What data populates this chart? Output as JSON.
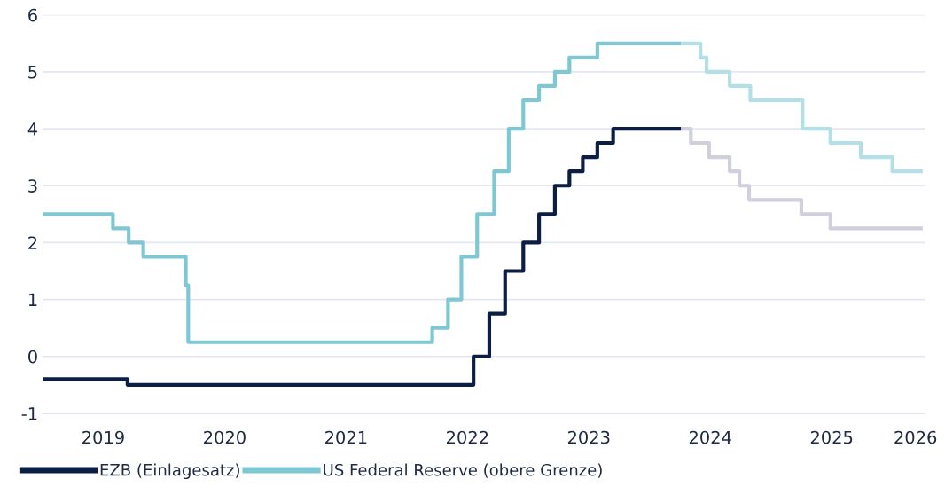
{
  "chart_data": {
    "type": "step",
    "xlim": [
      2019.0,
      2026.27
    ],
    "ylim": [
      -1,
      6
    ],
    "xticks": [
      {
        "value": 2019.5,
        "label": "2019"
      },
      {
        "value": 2020.5,
        "label": "2020"
      },
      {
        "value": 2021.5,
        "label": "2021"
      },
      {
        "value": 2022.5,
        "label": "2022"
      },
      {
        "value": 2023.5,
        "label": "2023"
      },
      {
        "value": 2024.5,
        "label": "2024"
      },
      {
        "value": 2025.5,
        "label": "2025"
      },
      {
        "value": 2026.19,
        "label": "2026"
      }
    ],
    "yticks": [
      -1,
      0,
      1,
      2,
      3,
      4,
      5,
      6
    ],
    "grid": "y",
    "legend": "bottom left",
    "series": [
      {
        "name": "EZB (Einlagesatz)",
        "color": "#0d1e45",
        "x": [
          2019.0,
          2019.7,
          2022.55,
          2022.68,
          2022.81,
          2022.96,
          2023.09,
          2023.22,
          2023.34,
          2023.45,
          2023.57,
          2023.7,
          2024.26
        ],
        "values": [
          -0.4,
          -0.5,
          0,
          0.75,
          1.5,
          2.0,
          2.5,
          3.0,
          3.25,
          3.5,
          3.75,
          4.0,
          4.0
        ]
      },
      {
        "color": "#cfd0dc",
        "x": [
          2024.26,
          2024.34,
          2024.49,
          2024.66,
          2024.74,
          2024.82,
          2025.25,
          2025.49,
          2026.25
        ],
        "values": [
          4.0,
          3.75,
          3.5,
          3.25,
          3.0,
          2.75,
          2.5,
          2.25,
          2.25
        ]
      },
      {
        "name": "US Federal Reserve (obere Grenze)",
        "color": "#7ec8d3",
        "x": [
          2019.0,
          2019.58,
          2019.71,
          2019.83,
          2020.18,
          2020.2,
          2022.21,
          2022.34,
          2022.45,
          2022.58,
          2022.72,
          2022.84,
          2022.96,
          2023.09,
          2023.22,
          2023.34,
          2023.57,
          2024.26
        ],
        "values": [
          2.5,
          2.25,
          2.0,
          1.75,
          1.25,
          0.25,
          0.5,
          1.0,
          1.75,
          2.5,
          3.25,
          4.0,
          4.5,
          4.75,
          5.0,
          5.25,
          5.5,
          5.5
        ]
      },
      {
        "color": "#b3e0e6",
        "x": [
          2024.26,
          2024.42,
          2024.47,
          2024.66,
          2024.83,
          2025.26,
          2025.49,
          2025.74,
          2026.0,
          2026.25
        ],
        "values": [
          5.5,
          5.25,
          5.0,
          4.75,
          4.5,
          4.0,
          3.75,
          3.5,
          3.25,
          3.25
        ]
      }
    ]
  }
}
